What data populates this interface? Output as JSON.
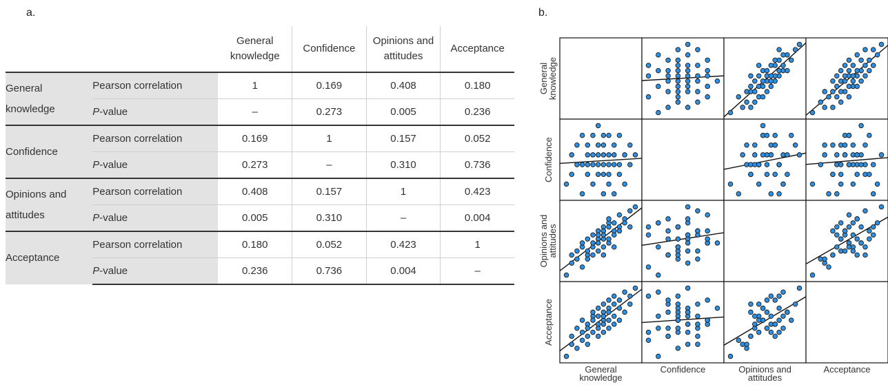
{
  "panel_a_label": "a.",
  "panel_b_label": "b.",
  "table": {
    "columns": [
      [
        "General",
        "knowledge"
      ],
      [
        "Confidence"
      ],
      [
        "Opinions and",
        "attitudes"
      ],
      [
        "Acceptance"
      ]
    ],
    "stat_labels": {
      "pearson": "Pearson correlation",
      "p_prefix": "P",
      "p_suffix": "-value"
    },
    "rows": [
      {
        "name": [
          "General",
          "knowledge"
        ],
        "pearson": [
          "1",
          "0.169",
          "0.408",
          "0.180"
        ],
        "p": [
          "–",
          "0.273",
          "0.005",
          "0.236"
        ]
      },
      {
        "name": [
          "Confidence"
        ],
        "pearson": [
          "0.169",
          "1",
          "0.157",
          "0.052"
        ],
        "p": [
          "0.273",
          "–",
          "0.310",
          "0.736"
        ]
      },
      {
        "name": [
          "Opinions and",
          "attitudes"
        ],
        "pearson": [
          "0.408",
          "0.157",
          "1",
          "0.423"
        ],
        "p": [
          "0.005",
          "0.310",
          "–",
          "0.004"
        ]
      },
      {
        "name": [
          "Acceptance"
        ],
        "pearson": [
          "0.180",
          "0.052",
          "0.423",
          "1"
        ],
        "p": [
          "0.236",
          "0.736",
          "0.004",
          "–"
        ]
      }
    ]
  },
  "chart_data": {
    "type": "scatter",
    "subtype": "scatterplot-matrix",
    "variables": [
      "General knowledge",
      "Confidence",
      "Opinions and attitudes",
      "Acceptance"
    ],
    "row_labels": [
      [
        "General",
        "knowledge"
      ],
      [
        "Confidence"
      ],
      [
        "Opinions and",
        "attitudes"
      ],
      [
        "Acceptance"
      ]
    ],
    "col_labels": [
      [
        "General",
        "knowledge"
      ],
      [
        "Confidence"
      ],
      [
        "Opinions and",
        "attitudes"
      ],
      [
        "Acceptance"
      ]
    ],
    "marker_color": "#2f8fe0",
    "marker_edge": "#1a1a1a",
    "fit_lines": "linear",
    "data": {
      "General knowledge": [
        2,
        3,
        3,
        4,
        4,
        5,
        5,
        5,
        6,
        6,
        6,
        6,
        7,
        7,
        7,
        7,
        8,
        8,
        8,
        8,
        8,
        9,
        9,
        9,
        9,
        9,
        9,
        10,
        10,
        10,
        10,
        10,
        11,
        11,
        11,
        11,
        12,
        12,
        12,
        13,
        13,
        14,
        14,
        15
      ],
      "Confidence": [
        3,
        6,
        4,
        5,
        7,
        2,
        5,
        8,
        4,
        6,
        5,
        7,
        3,
        6,
        8,
        5,
        4,
        7,
        5,
        6,
        9,
        2,
        5,
        6,
        8,
        4,
        7,
        3,
        6,
        5,
        8,
        4,
        7,
        5,
        6,
        2,
        5,
        8,
        4,
        6,
        3,
        7,
        5,
        6
      ],
      "Opinions and attitudes": [
        4,
        7,
        9,
        8,
        10,
        6,
        11,
        12,
        9,
        10,
        13,
        8,
        11,
        14,
        12,
        9,
        13,
        15,
        10,
        14,
        12,
        16,
        11,
        13,
        15,
        9,
        14,
        17,
        12,
        16,
        13,
        18,
        15,
        11,
        17,
        14,
        16,
        19,
        15,
        18,
        17,
        20,
        16,
        21
      ],
      "Acceptance": [
        5,
        8,
        10,
        7,
        12,
        9,
        11,
        14,
        10,
        13,
        12,
        8,
        15,
        11,
        14,
        16,
        12,
        10,
        15,
        13,
        17,
        11,
        14,
        16,
        13,
        18,
        15,
        12,
        17,
        14,
        19,
        16,
        13,
        18,
        15,
        20,
        17,
        14,
        19,
        16,
        21,
        18,
        20,
        22
      ]
    }
  }
}
